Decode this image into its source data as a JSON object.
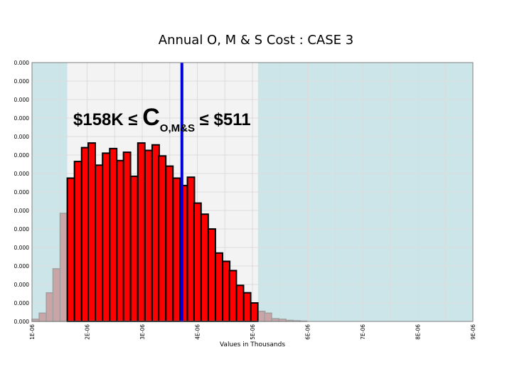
{
  "chart_data": {
    "type": "bar",
    "title": "Annual O, M & S Cost : CASE 3",
    "xlabel": "Values in Thousands",
    "ylabel": "",
    "x_ticks": [
      "1E-06",
      "2E-06",
      "3E-06",
      "4E-06",
      "5E-06",
      "6E-06",
      "7E-06",
      "8E-06",
      "9E-06"
    ],
    "y_ticks": [
      "0.000",
      "0.000",
      "0.000",
      "0.000",
      "0.000",
      "0.000",
      "0.000",
      "0.000",
      "0.000",
      "0.000",
      "0.000",
      "0.000",
      "0.000",
      "0.000",
      "0.000"
    ],
    "xlim": [
      1,
      9
    ],
    "ylim": [
      0,
      14
    ],
    "bin_width": 0.128,
    "bins": [
      {
        "x": 1.0,
        "y": 0.12
      },
      {
        "x": 1.13,
        "y": 0.45
      },
      {
        "x": 1.26,
        "y": 1.55
      },
      {
        "x": 1.38,
        "y": 2.85
      },
      {
        "x": 1.51,
        "y": 5.85
      },
      {
        "x": 1.64,
        "y": 7.75
      },
      {
        "x": 1.77,
        "y": 8.65
      },
      {
        "x": 1.9,
        "y": 9.4
      },
      {
        "x": 2.02,
        "y": 9.65
      },
      {
        "x": 2.15,
        "y": 8.45
      },
      {
        "x": 2.28,
        "y": 9.1
      },
      {
        "x": 2.41,
        "y": 9.35
      },
      {
        "x": 2.54,
        "y": 8.7
      },
      {
        "x": 2.66,
        "y": 9.15
      },
      {
        "x": 2.79,
        "y": 7.85
      },
      {
        "x": 2.92,
        "y": 9.65
      },
      {
        "x": 3.05,
        "y": 9.25
      },
      {
        "x": 3.18,
        "y": 9.55
      },
      {
        "x": 3.3,
        "y": 8.95
      },
      {
        "x": 3.43,
        "y": 8.4
      },
      {
        "x": 3.56,
        "y": 7.75
      },
      {
        "x": 3.69,
        "y": 7.35
      },
      {
        "x": 3.82,
        "y": 7.8
      },
      {
        "x": 3.94,
        "y": 6.4
      },
      {
        "x": 4.07,
        "y": 5.8
      },
      {
        "x": 4.2,
        "y": 5.0
      },
      {
        "x": 4.33,
        "y": 3.7
      },
      {
        "x": 4.46,
        "y": 3.25
      },
      {
        "x": 4.58,
        "y": 2.75
      },
      {
        "x": 4.71,
        "y": 1.95
      },
      {
        "x": 4.84,
        "y": 1.55
      },
      {
        "x": 4.97,
        "y": 1.0
      },
      {
        "x": 5.1,
        "y": 0.55
      },
      {
        "x": 5.22,
        "y": 0.45
      },
      {
        "x": 5.35,
        "y": 0.15
      },
      {
        "x": 5.48,
        "y": 0.12
      },
      {
        "x": 5.61,
        "y": 0.06
      },
      {
        "x": 5.74,
        "y": 0.04
      },
      {
        "x": 5.86,
        "y": 0.02
      }
    ],
    "highlight_range": [
      1.64,
      5.1
    ],
    "marker_line_x": 3.72,
    "annotation": {
      "prefix": "$158K ≤ ",
      "symbol": "C",
      "subscript": "O,M&S",
      "suffix": " ≤ $511"
    },
    "colors": {
      "inside_fill": "#ff0000",
      "inside_stroke": "#000000",
      "outside_fill": "#c9a5a8",
      "outside_stroke": "#a0a0a0",
      "shaded_region": "#cce5e9",
      "plot_background": "#f3f3f3",
      "grid": "#dcdcdc",
      "marker_line": "#0000dd"
    },
    "grid": true
  }
}
